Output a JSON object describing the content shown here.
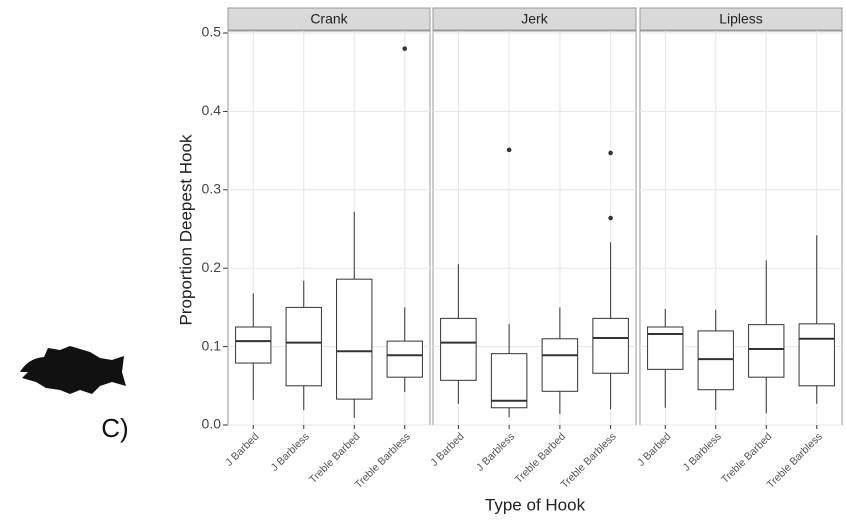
{
  "chart_data": {
    "type": "box",
    "ylabel": "Proportion Deepest Hook",
    "xlabel": "Type of Hook",
    "annotation": "C)",
    "ylim": [
      0,
      0.5
    ],
    "yticks": [
      {
        "value": 0,
        "label": "0.0"
      },
      0.1,
      0.2,
      0.3,
      0.4,
      0.5
    ],
    "grid": true,
    "color": "#333333",
    "facets": [
      {
        "title": "Crank",
        "categories": [
          "J Barbed",
          "J Barbless",
          "Treble Barbed",
          "Treble Barbless"
        ],
        "boxes": [
          {
            "whislo": 0.032,
            "q1": 0.079,
            "med": 0.107,
            "q3": 0.125,
            "whishi": 0.168,
            "fliers": []
          },
          {
            "whislo": 0.019,
            "q1": 0.05,
            "med": 0.105,
            "q3": 0.15,
            "whishi": 0.184,
            "fliers": []
          },
          {
            "whislo": 0.009,
            "q1": 0.033,
            "med": 0.094,
            "q3": 0.186,
            "whishi": 0.272,
            "fliers": []
          },
          {
            "whislo": 0.042,
            "q1": 0.061,
            "med": 0.089,
            "q3": 0.107,
            "whishi": 0.15,
            "fliers": [
              0.48
            ]
          }
        ]
      },
      {
        "title": "Jerk",
        "categories": [
          "J Barbed",
          "J Barbless",
          "Treble Barbed",
          "Treble Barbless"
        ],
        "boxes": [
          {
            "whislo": 0.027,
            "q1": 0.057,
            "med": 0.105,
            "q3": 0.136,
            "whishi": 0.205,
            "fliers": []
          },
          {
            "whislo": 0.01,
            "q1": 0.022,
            "med": 0.031,
            "q3": 0.091,
            "whishi": 0.129,
            "fliers": [
              0.351
            ]
          },
          {
            "whislo": 0.014,
            "q1": 0.043,
            "med": 0.089,
            "q3": 0.11,
            "whishi": 0.15,
            "fliers": []
          },
          {
            "whislo": 0.02,
            "q1": 0.066,
            "med": 0.111,
            "q3": 0.136,
            "whishi": 0.233,
            "fliers": [
              0.347,
              0.264
            ]
          }
        ]
      },
      {
        "title": "Lipless",
        "categories": [
          "J Barbed",
          "J Barbless",
          "Treble Barbed",
          "Treble Barbless"
        ],
        "boxes": [
          {
            "whislo": 0.022,
            "q1": 0.071,
            "med": 0.116,
            "q3": 0.125,
            "whishi": 0.148,
            "fliers": []
          },
          {
            "whislo": 0.019,
            "q1": 0.045,
            "med": 0.084,
            "q3": 0.12,
            "whishi": 0.147,
            "fliers": []
          },
          {
            "whislo": 0.015,
            "q1": 0.061,
            "med": 0.097,
            "q3": 0.128,
            "whishi": 0.21,
            "fliers": []
          },
          {
            "whislo": 0.027,
            "q1": 0.05,
            "med": 0.11,
            "q3": 0.129,
            "whishi": 0.242,
            "fliers": []
          }
        ]
      }
    ]
  }
}
